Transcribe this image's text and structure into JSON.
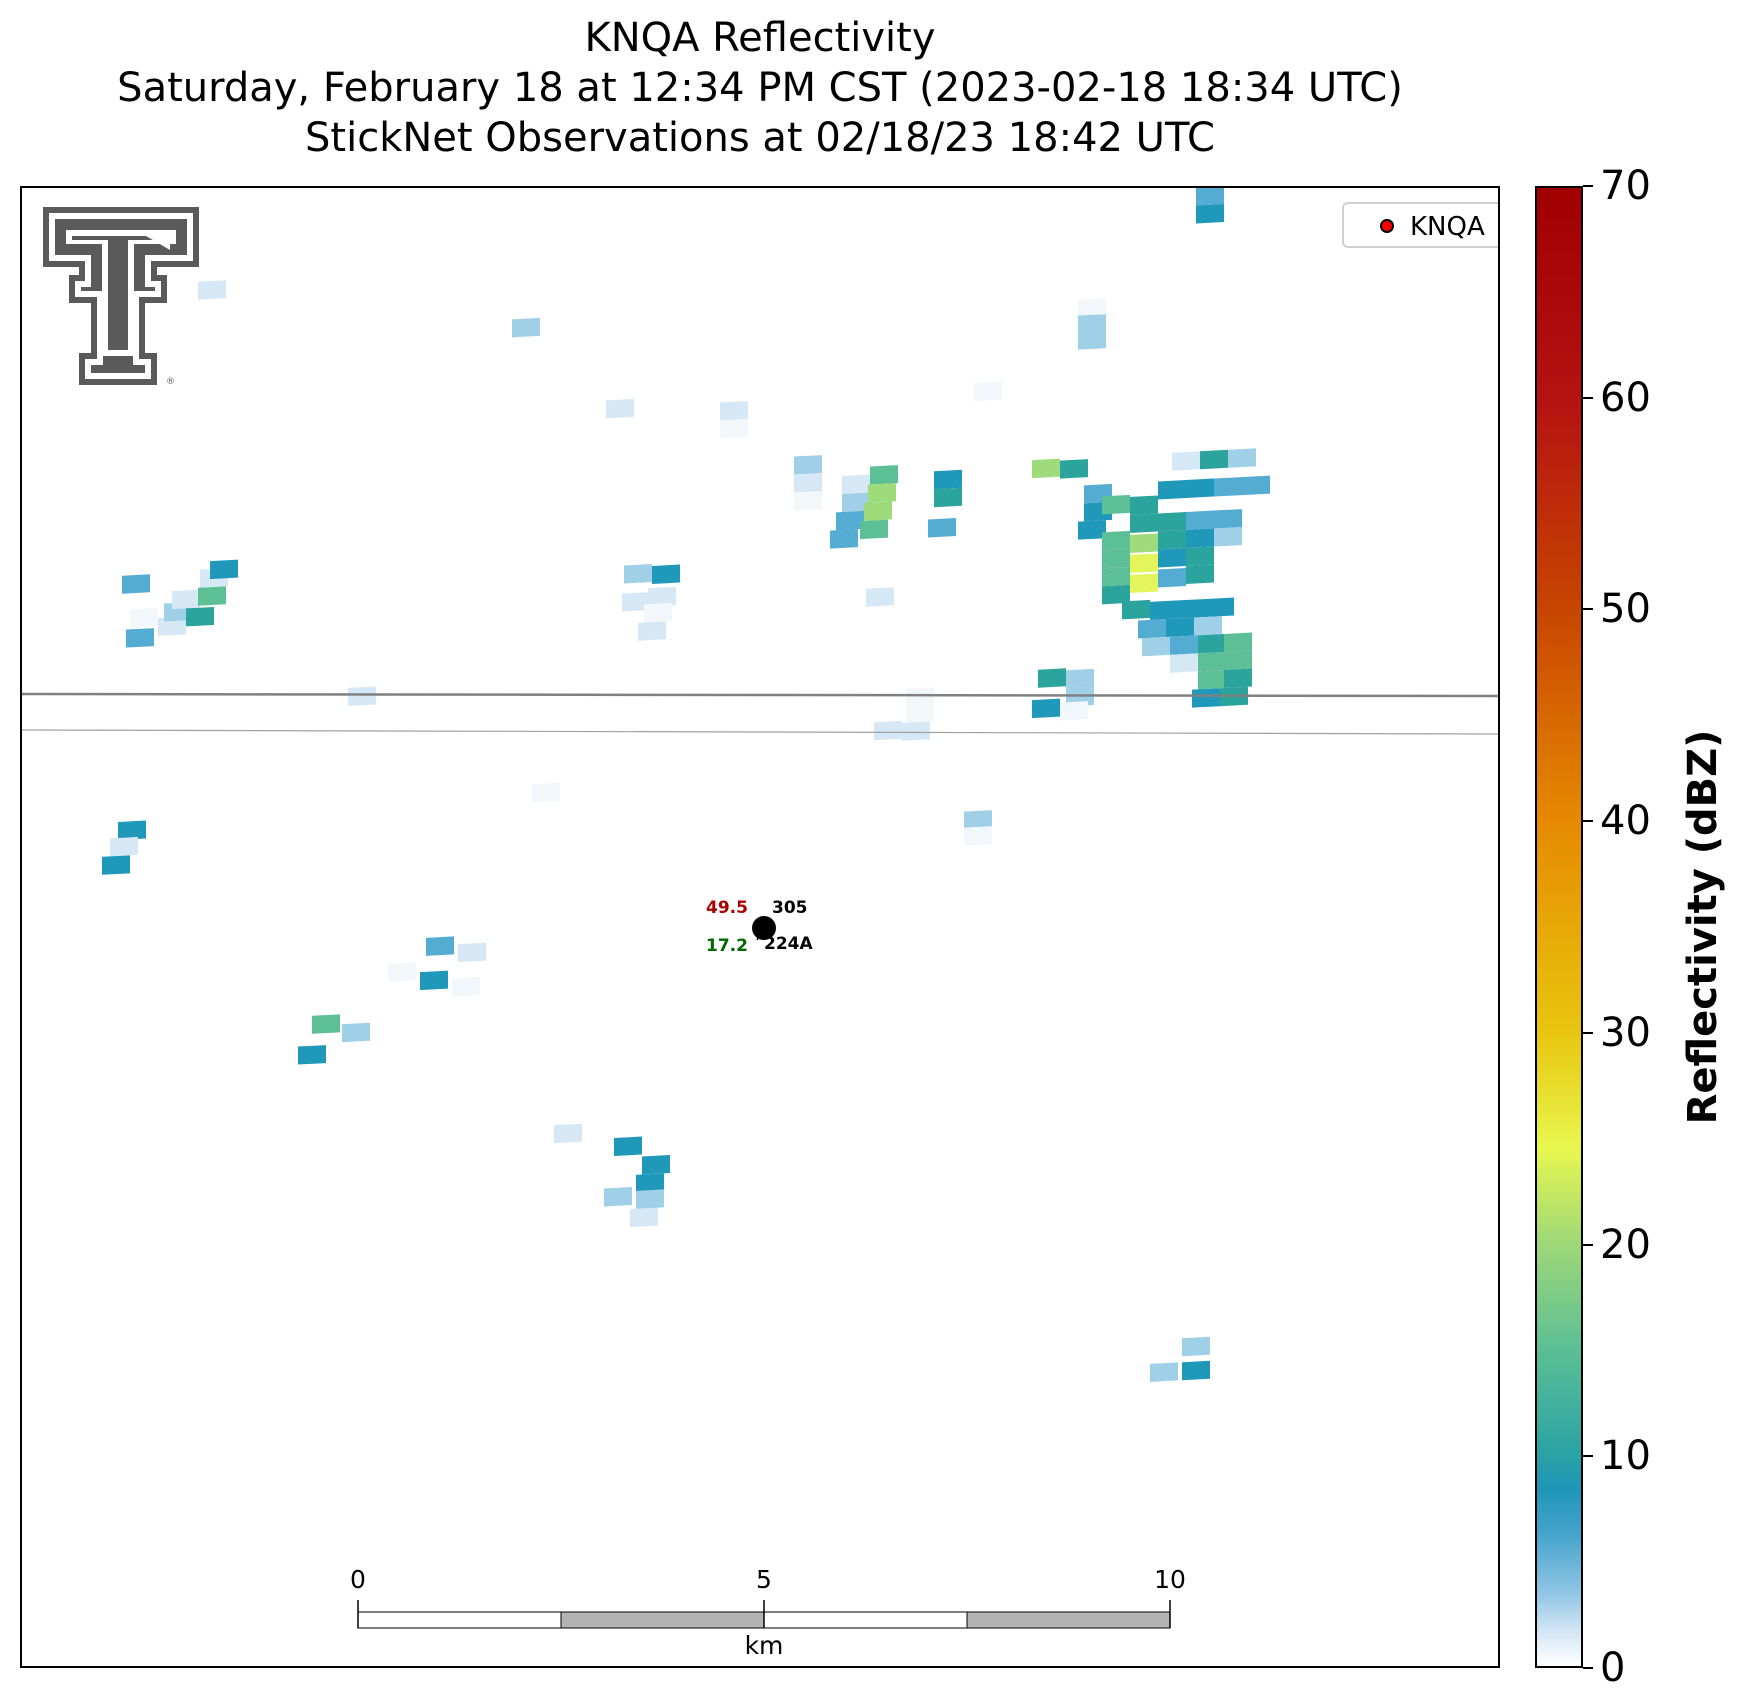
{
  "title": {
    "line1": "KNQA Reflectivity",
    "line2": "Saturday, February 18 at 12:34 PM CST (2023-02-18 18:34 UTC)",
    "line3": "StickNet Observations at 02/18/23 18:42 UTC"
  },
  "legend": {
    "label": "KNQA",
    "marker_color": "#ff0000"
  },
  "logo": {
    "name": "Texas Tech Double T"
  },
  "station": {
    "id_top": "305",
    "id_bottom": "224A",
    "value_top": "49.5",
    "value_top_color": "#aa0000",
    "value_bottom": "17.2",
    "value_bottom_color": "#006600"
  },
  "scale_bar": {
    "unit": "km",
    "ticks": [
      "0",
      "5",
      "10"
    ]
  },
  "colorbar": {
    "label": "Reflectivity (dBZ)",
    "ticks": [
      "0",
      "10",
      "20",
      "30",
      "40",
      "50",
      "60",
      "70"
    ],
    "range": [
      0,
      70
    ]
  }
}
